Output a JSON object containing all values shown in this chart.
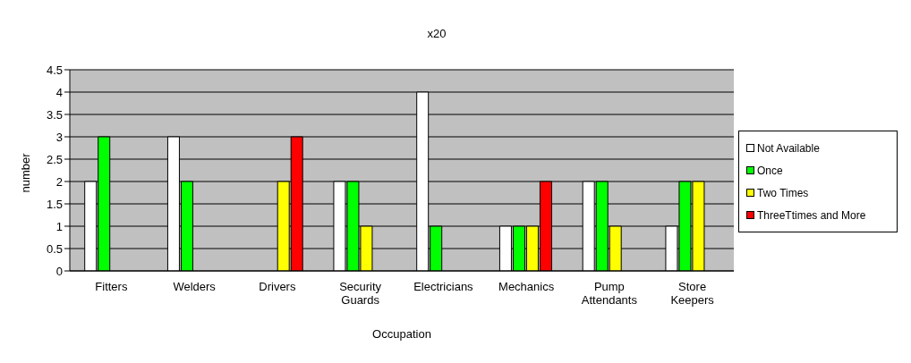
{
  "chart_data": {
    "type": "bar",
    "title": "x20",
    "xlabel": "Occupation",
    "ylabel": "number",
    "categories": [
      "Fitters",
      "Welders",
      "Drivers",
      "Security Guards",
      "Electricians",
      "Mechanics",
      "Pump Attendants",
      "Store Keepers"
    ],
    "series": [
      {
        "name": "Not Available",
        "color": "#ffffff",
        "values": [
          2,
          3,
          0,
          2,
          4,
          1,
          2,
          1
        ]
      },
      {
        "name": "Once",
        "color": "#00ff00",
        "values": [
          3,
          2,
          0,
          2,
          1,
          1,
          2,
          2
        ]
      },
      {
        "name": "Two Times",
        "color": "#ffff00",
        "values": [
          0,
          0,
          2,
          1,
          0,
          1,
          1,
          2
        ]
      },
      {
        "name": "ThreeTtimes and More",
        "color": "#ff0000",
        "values": [
          0,
          0,
          3,
          0,
          0,
          2,
          0,
          0
        ]
      }
    ],
    "ylim": [
      0,
      4.5
    ],
    "yticks": [
      0,
      0.5,
      1,
      1.5,
      2,
      2.5,
      3,
      3.5,
      4,
      4.5
    ],
    "grid": "y",
    "legend": "right"
  }
}
